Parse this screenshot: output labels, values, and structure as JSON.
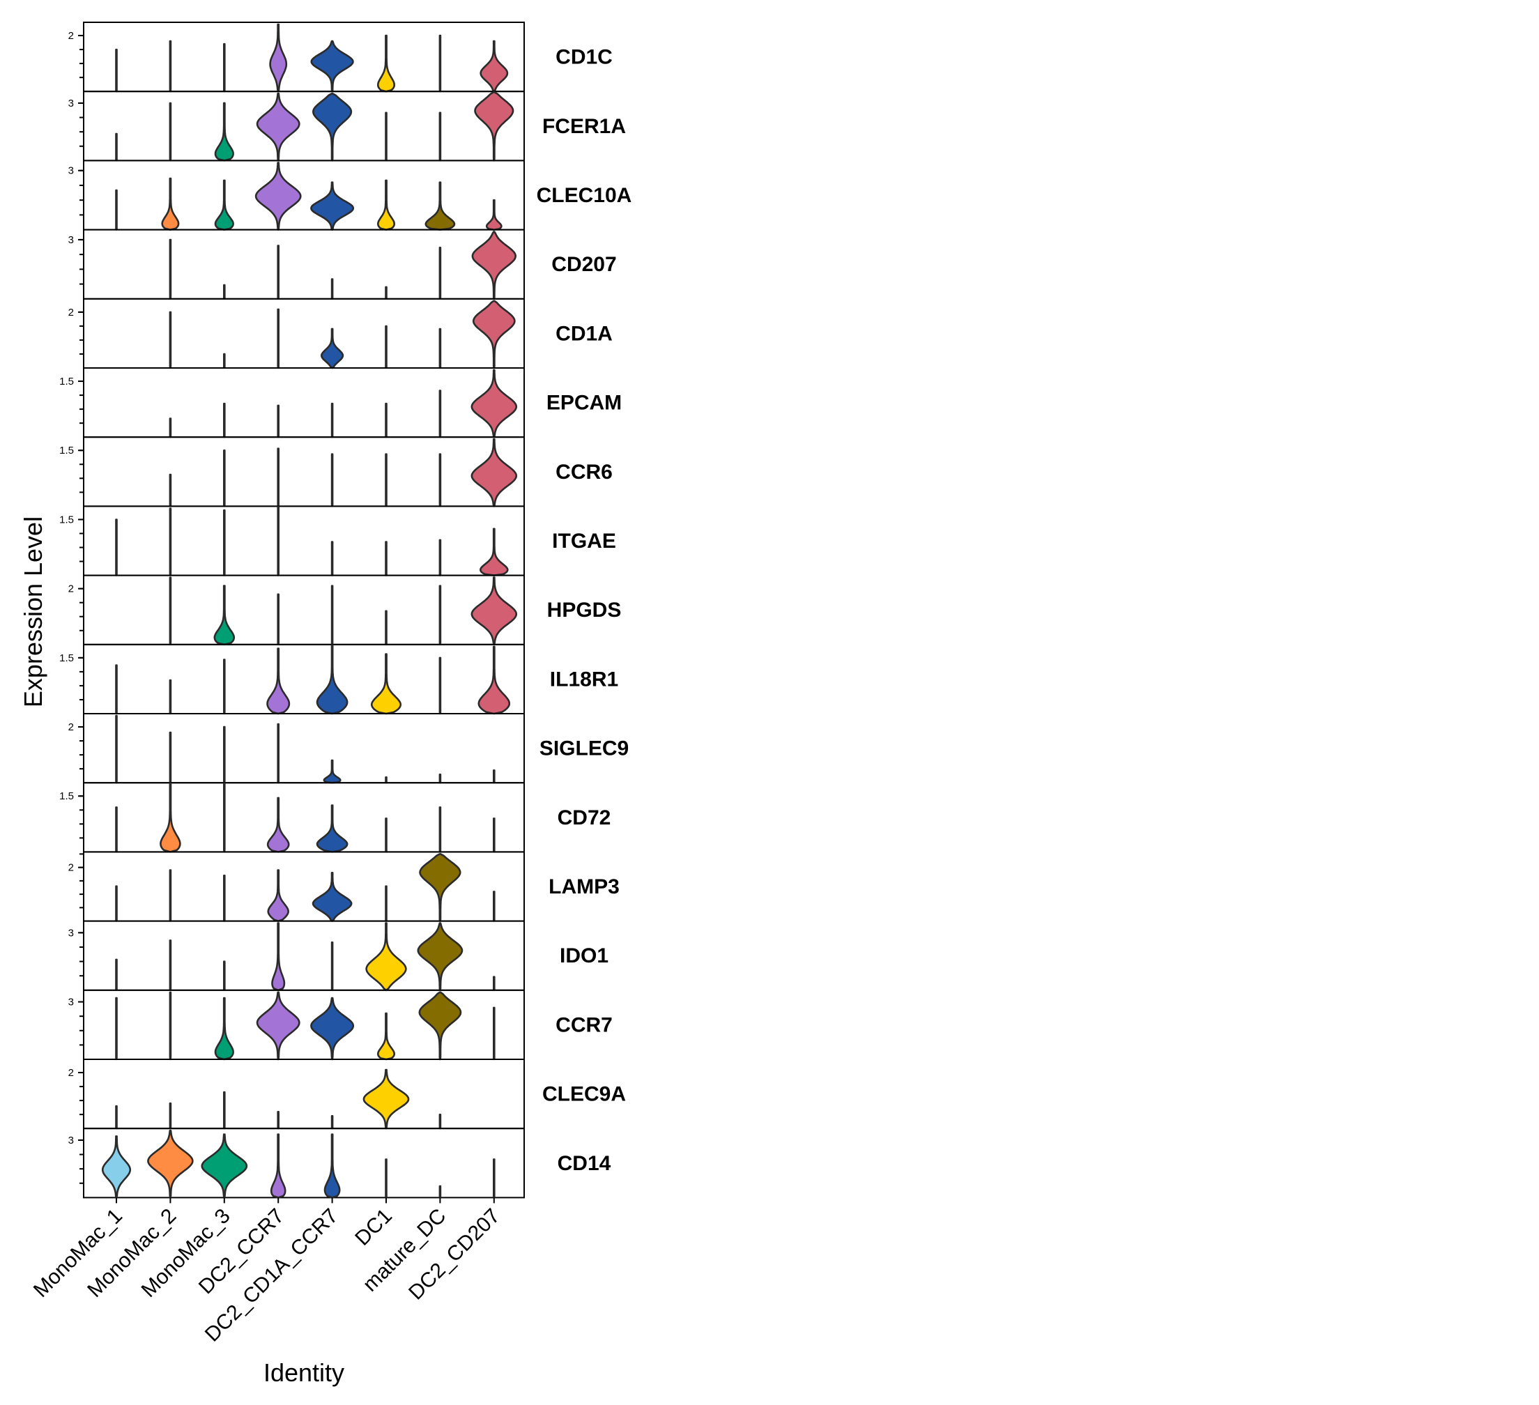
{
  "chart_data": {
    "type": "stacked-violin",
    "xlabel": "Identity",
    "ylabel": "Expression Level",
    "grid": false,
    "legend": "none",
    "categories": [
      "MonoMac_1",
      "MonoMac_2",
      "MonoMac_3",
      "DC2_CCR7",
      "DC2_CD1A_CCR7",
      "DC1",
      "mature_DC",
      "DC2_CD207"
    ],
    "colors": [
      "#87CEEB",
      "#FF8C42",
      "#009E73",
      "#A374D5",
      "#2255A4",
      "#FFD000",
      "#846C00",
      "#D25F72"
    ],
    "genes": [
      {
        "name": "CD1C",
        "ymax": 2.4,
        "tick": 2,
        "tick_label": "2",
        "max": [
          1.5,
          1.8,
          1.7,
          2.4,
          1.8,
          2.0,
          2.0,
          1.8
        ],
        "width": [
          0,
          0,
          0,
          0.32,
          0.85,
          0.5,
          0,
          0.55
        ],
        "peak": [
          0.5,
          0.5,
          0.5,
          0.4,
          0.6,
          0.05,
          0.5,
          0.35
        ]
      },
      {
        "name": "FCER1A",
        "ymax": 3.5,
        "tick": 3,
        "tick_label": "3",
        "max": [
          1.4,
          3.0,
          3.0,
          3.5,
          3.5,
          2.5,
          2.5,
          3.6
        ],
        "width": [
          0,
          0,
          0.55,
          0.85,
          0.85,
          0,
          0,
          0.85
        ],
        "peak": [
          0.5,
          0.5,
          0.05,
          0.55,
          0.75,
          0.5,
          0.5,
          0.75
        ]
      },
      {
        "name": "CLEC10A",
        "ymax": 3.4,
        "tick": 3,
        "tick_label": "3",
        "max": [
          2.0,
          2.6,
          2.5,
          3.4,
          2.4,
          2.5,
          2.4,
          1.5
        ],
        "width": [
          0,
          0.5,
          0.55,
          0.9,
          0.85,
          0.5,
          0.9,
          0.45
        ],
        "peak": [
          0.5,
          0.05,
          0.05,
          0.5,
          0.45,
          0.05,
          0.05,
          0.05
        ]
      },
      {
        "name": "CD207",
        "ymax": 3.4,
        "tick": 3,
        "tick_label": "3",
        "max": [
          0,
          3.0,
          0.7,
          2.7,
          1.0,
          0.6,
          2.6,
          3.4
        ],
        "width": [
          0,
          0,
          0,
          0,
          0,
          0,
          0,
          0.9
        ],
        "peak": [
          0.5,
          0.5,
          0.5,
          0.5,
          0.5,
          0.5,
          0.5,
          0.65
        ]
      },
      {
        "name": "CD1A",
        "ymax": 2.4,
        "tick": 2,
        "tick_label": "2",
        "max": [
          0,
          2.0,
          0.5,
          2.1,
          1.4,
          1.5,
          1.4,
          2.4
        ],
        "width": [
          0,
          0,
          0,
          0,
          0.45,
          0,
          0,
          0.9
        ],
        "peak": [
          0.5,
          0.5,
          0.5,
          0.5,
          0.3,
          0.5,
          0.5,
          0.72
        ]
      },
      {
        "name": "EPCAM",
        "ymax": 1.8,
        "tick": 1.5,
        "tick_label": "1.5",
        "max": [
          0,
          0.5,
          0.9,
          0.85,
          0.9,
          0.9,
          1.25,
          1.8
        ],
        "width": [
          0,
          0,
          0,
          0,
          0,
          0,
          0,
          0.9
        ],
        "peak": [
          0.5,
          0.5,
          0.5,
          0.5,
          0.5,
          0.5,
          0.5,
          0.45
        ]
      },
      {
        "name": "CCR6",
        "ymax": 1.8,
        "tick": 1.5,
        "tick_label": "1.5",
        "max": [
          0,
          0.85,
          1.5,
          1.55,
          1.4,
          1.4,
          1.4,
          1.8
        ],
        "width": [
          0,
          0,
          0,
          0,
          0,
          0,
          0,
          0.9
        ],
        "peak": [
          0.5,
          0.5,
          0.5,
          0.5,
          0.5,
          0.5,
          0.5,
          0.45
        ]
      },
      {
        "name": "ITGAE",
        "ymax": 1.8,
        "tick": 1.5,
        "tick_label": "1.5",
        "max": [
          1.5,
          1.8,
          1.75,
          1.95,
          0.9,
          0.9,
          0.95,
          1.25
        ],
        "width": [
          0,
          0,
          0,
          0,
          0,
          0,
          0,
          0.85
        ],
        "peak": [
          0.5,
          0.5,
          0.5,
          0.5,
          0.5,
          0.5,
          0.5,
          0.05
        ]
      },
      {
        "name": "HPGDS",
        "ymax": 2.4,
        "tick": 2,
        "tick_label": "2",
        "max": [
          0,
          2.4,
          2.1,
          1.8,
          2.1,
          1.2,
          2.1,
          2.4
        ],
        "width": [
          0,
          0,
          0.6,
          0,
          0,
          0,
          0,
          0.9
        ],
        "peak": [
          0.5,
          0.5,
          0.05,
          0.5,
          0.5,
          0.5,
          0.5,
          0.45
        ]
      },
      {
        "name": "IL18R1",
        "ymax": 1.8,
        "tick": 1.5,
        "tick_label": "1.5",
        "max": [
          1.3,
          0.9,
          1.45,
          1.75,
          1.85,
          1.6,
          1.5,
          1.8
        ],
        "width": [
          0,
          0,
          0,
          0.6,
          0.8,
          0.8,
          0,
          0.85
        ],
        "peak": [
          0.5,
          0.5,
          0.5,
          0.1,
          0.12,
          0.1,
          0.5,
          0.1
        ]
      },
      {
        "name": "SIGLEC9",
        "ymax": 2.4,
        "tick": 2,
        "tick_label": "2",
        "max": [
          2.4,
          1.8,
          2.0,
          2.1,
          0.8,
          0.2,
          0.3,
          0.45
        ],
        "width": [
          0,
          0,
          0,
          0,
          0.5,
          0,
          0,
          0
        ],
        "peak": [
          0.5,
          0.5,
          0.5,
          0.5,
          0.05,
          0.5,
          0.5,
          0.5
        ]
      },
      {
        "name": "CD72",
        "ymax": 1.8,
        "tick": 1.5,
        "tick_label": "1.5",
        "max": [
          1.2,
          1.9,
          1.95,
          1.45,
          1.25,
          0.9,
          1.2,
          0.9
        ],
        "width": [
          0,
          0.6,
          0,
          0.6,
          0.8,
          0,
          0,
          0
        ],
        "peak": [
          0.5,
          0.05,
          0.5,
          0.08,
          0.12,
          0.5,
          0.5,
          0.5
        ]
      },
      {
        "name": "LAMP3",
        "ymax": 2.5,
        "tick": 2,
        "tick_label": "2",
        "max": [
          1.3,
          1.9,
          1.7,
          1.9,
          1.8,
          1.3,
          2.5,
          1.1
        ],
        "width": [
          0,
          0,
          0,
          0.5,
          0.8,
          0,
          0.9,
          0
        ],
        "peak": [
          0.5,
          0.5,
          0.5,
          0.15,
          0.35,
          0.5,
          0.75,
          0.5
        ]
      },
      {
        "name": "IDO1",
        "ymax": 3.5,
        "tick": 3,
        "tick_label": "3",
        "max": [
          1.6,
          2.6,
          1.5,
          3.5,
          2.5,
          3.5,
          3.5,
          0.7
        ],
        "width": [
          0,
          0,
          0,
          0.4,
          0,
          0.85,
          0.9,
          0
        ],
        "peak": [
          0.5,
          0.5,
          0.5,
          0.02,
          0.5,
          0.3,
          0.6,
          0.5
        ]
      },
      {
        "name": "CCR7",
        "ymax": 3.5,
        "tick": 3,
        "tick_label": "3",
        "max": [
          3.2,
          3.5,
          3.2,
          3.5,
          3.2,
          2.4,
          3.5,
          2.7
        ],
        "width": [
          0,
          0,
          0.55,
          0.85,
          0.85,
          0.5,
          0.9,
          0
        ],
        "peak": [
          0.5,
          0.5,
          0.05,
          0.55,
          0.55,
          0.05,
          0.72,
          0.5
        ]
      },
      {
        "name": "CLEC9A",
        "ymax": 2.4,
        "tick": 2,
        "tick_label": "2",
        "max": [
          0.8,
          0.9,
          1.3,
          0.6,
          0.45,
          2.1,
          0.5,
          0
        ],
        "width": [
          0,
          0,
          0,
          0,
          0,
          0.9,
          0,
          0
        ],
        "peak": [
          0.5,
          0.5,
          0.5,
          0.5,
          0.5,
          0.5,
          0.5,
          0.5
        ]
      },
      {
        "name": "CD14",
        "ymax": 3.5,
        "tick": 3,
        "tick_label": "3",
        "max": [
          3.2,
          3.5,
          3.3,
          3.3,
          3.3,
          2.0,
          0.6,
          2.0
        ],
        "width": [
          0.55,
          0.9,
          0.9,
          0.45,
          0.45,
          0,
          0,
          0
        ],
        "peak": [
          0.45,
          0.55,
          0.5,
          0.03,
          0.05,
          0.5,
          0.5,
          0.5
        ]
      }
    ]
  }
}
